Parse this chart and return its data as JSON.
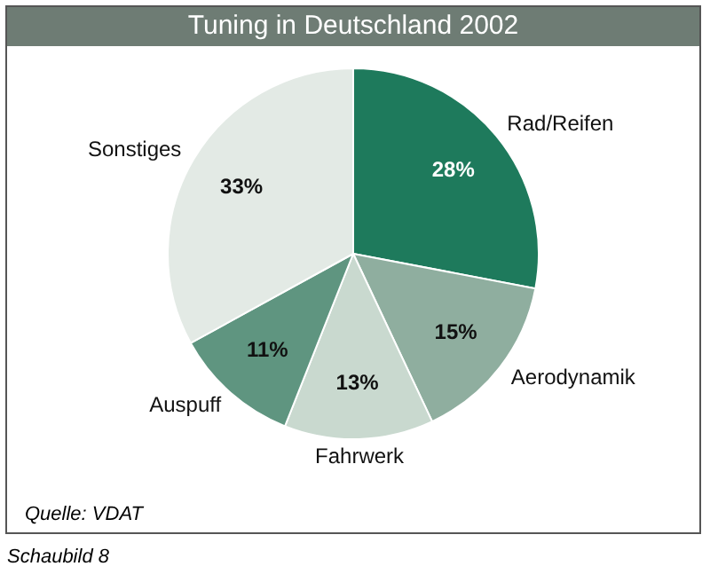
{
  "chart_data": {
    "type": "pie",
    "title": "Tuning in Deutschland 2002",
    "categories": [
      "Rad/Reifen",
      "Aerodynamik",
      "Fahrwerk",
      "Auspuff",
      "Sonstiges"
    ],
    "values": [
      28,
      15,
      13,
      11,
      33
    ],
    "value_labels": [
      "28%",
      "15%",
      "13%",
      "11%",
      "33%"
    ],
    "colors": [
      "#1e7a5c",
      "#8fae9f",
      "#c9d9cf",
      "#5f9580",
      "#e3eae5"
    ],
    "legend": false,
    "annotations": [
      "Quelle: VDAT",
      "Schaubild 8"
    ]
  }
}
